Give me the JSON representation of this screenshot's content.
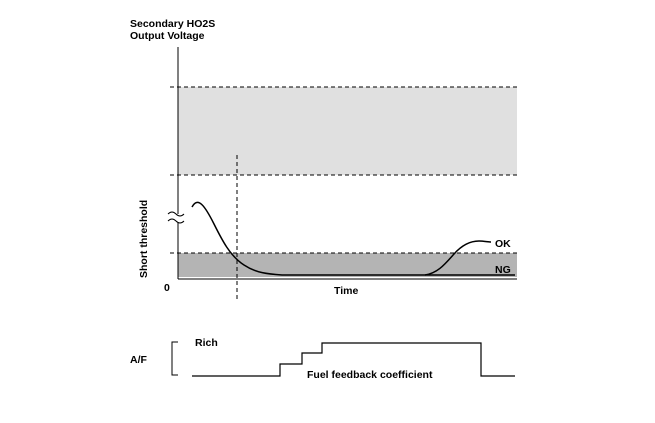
{
  "figure": {
    "y_axis_title_line1": "Secondary HO2S",
    "y_axis_title_line2": "Output Voltage",
    "y_threshold_label": "Short threshold",
    "origin_label": "0",
    "x_axis_label": "Time",
    "curve_ok_label": "OK",
    "curve_ng_label": "NG"
  },
  "lower": {
    "af_label": "A/F",
    "rich_label": "Rich",
    "coefficient_label": "Fuel feedback coefficient"
  },
  "colors": {
    "upper_band": "#e0e0e0",
    "short_band": "#b4b4b4",
    "line": "#000000"
  }
}
